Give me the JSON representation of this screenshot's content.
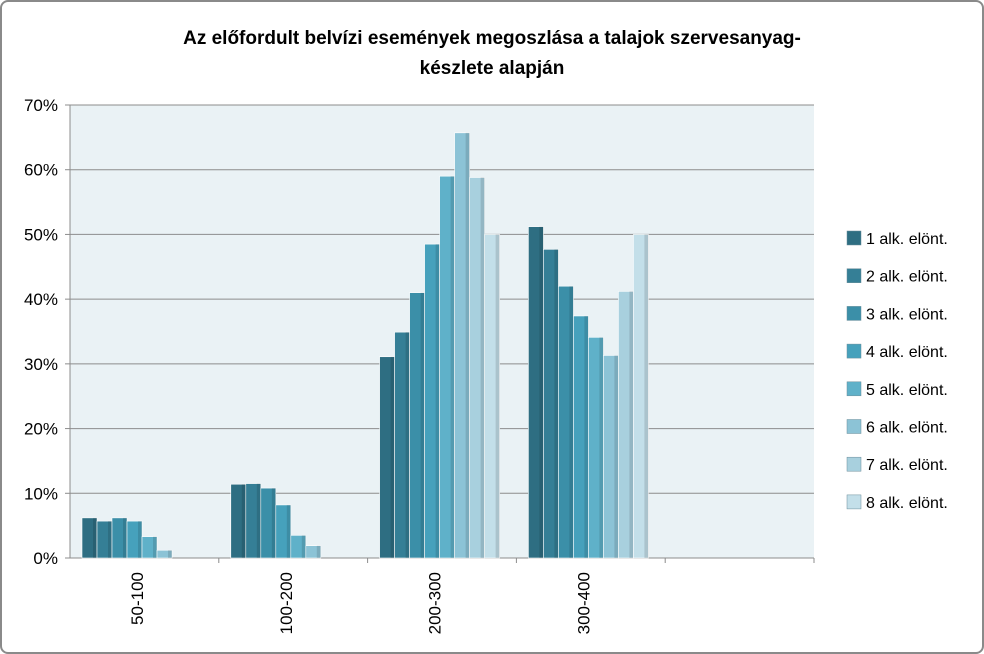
{
  "chart_data": {
    "type": "bar",
    "title_lines": [
      "Az előfordult belvízi események megoszlása a talajok szervesanyag-",
      "készlete alapján"
    ],
    "categories": [
      "50-100",
      "100-200",
      "200-300",
      "300-400",
      ""
    ],
    "ylim": [
      0,
      0.7
    ],
    "yticks": [
      0,
      0.1,
      0.2,
      0.3,
      0.4,
      0.5,
      0.6,
      0.7
    ],
    "ytick_labels": [
      "0%",
      "10%",
      "20%",
      "30%",
      "40%",
      "50%",
      "60%",
      "70%"
    ],
    "grid": true,
    "legend_position": "right",
    "series": [
      {
        "name": "1 alk. elönt.",
        "color": "#2e6e82",
        "values": [
          0.062,
          0.114,
          0.311,
          0.512,
          null
        ]
      },
      {
        "name": "2 alk. elönt.",
        "color": "#357f96",
        "values": [
          0.057,
          0.115,
          0.349,
          0.477,
          null
        ]
      },
      {
        "name": "3 alk. elönt.",
        "color": "#3b8fa8",
        "values": [
          0.062,
          0.108,
          0.41,
          0.42,
          null
        ]
      },
      {
        "name": "4 alk. elönt.",
        "color": "#46a1bc",
        "values": [
          0.057,
          0.082,
          0.485,
          0.374,
          null
        ]
      },
      {
        "name": "5 alk. elönt.",
        "color": "#5fb1c9",
        "values": [
          0.033,
          0.035,
          0.59,
          0.341,
          null
        ]
      },
      {
        "name": "6 alk. elönt.",
        "color": "#8cc3d6",
        "values": [
          0.012,
          0.019,
          0.657,
          0.313,
          null
        ]
      },
      {
        "name": "7 alk. elönt.",
        "color": "#a8d0de",
        "values": [
          null,
          null,
          0.588,
          0.412,
          null
        ]
      },
      {
        "name": "8 alk. elönt.",
        "color": "#c3dfe9",
        "values": [
          null,
          null,
          0.5,
          0.5,
          null
        ]
      }
    ]
  }
}
